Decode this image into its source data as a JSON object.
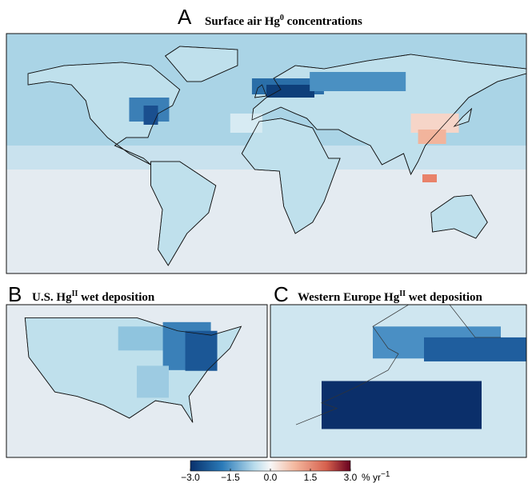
{
  "panels": [
    {
      "letter": "A",
      "title": "Surface air Hg",
      "title_sup": "0",
      "title_rest": " concentrations"
    },
    {
      "letter": "B",
      "title": "U.S. Hg",
      "title_sup": "II",
      "title_rest": " wet deposition"
    },
    {
      "letter": "C",
      "title": "Western Europe Hg",
      "title_sup": "II",
      "title_rest": " wet deposition"
    }
  ],
  "colorbar": {
    "xlim": [
      -3,
      3
    ],
    "ticks": [
      {
        "value": -3,
        "label": "−3.0"
      },
      {
        "value": -1.5,
        "label": "−1.5"
      },
      {
        "value": 0,
        "label": "0.0"
      },
      1.5,
      {
        "value": 3,
        "label": "3.0"
      }
    ],
    "unit": "% yr",
    "unit_sup": "−1"
  }
}
